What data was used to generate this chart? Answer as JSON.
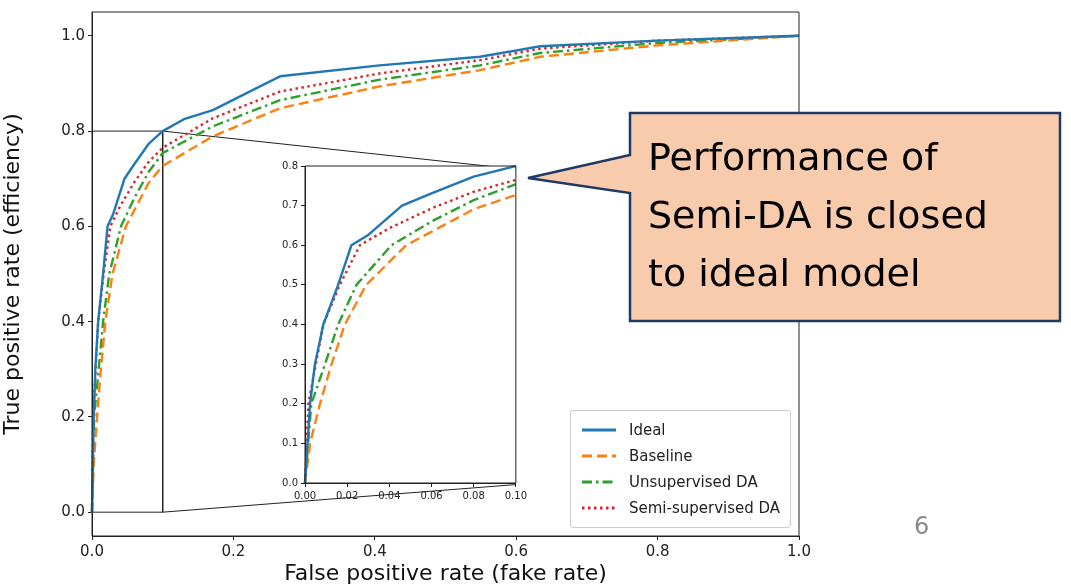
{
  "chart_data": [
    {
      "type": "line",
      "xlabel": "False positive rate (fake rate)",
      "ylabel": "True positive rate (efficiency)",
      "xlim": [
        0,
        1
      ],
      "ylim": [
        -0.05,
        1.05
      ],
      "xticks": [
        {
          "value": 0,
          "label": "0.0"
        },
        {
          "value": 0.2,
          "label": "0.2"
        },
        {
          "value": 0.4,
          "label": "0.4"
        },
        {
          "value": 0.6,
          "label": "0.6"
        },
        {
          "value": 0.8,
          "label": "0.8"
        },
        {
          "value": 1,
          "label": "1.0"
        }
      ],
      "yticks": [
        {
          "value": 0,
          "label": "0.0"
        },
        {
          "value": 0.2,
          "label": "0.2"
        },
        {
          "value": 0.4,
          "label": "0.4"
        },
        {
          "value": 0.6,
          "label": "0.6"
        },
        {
          "value": 0.8,
          "label": "0.8"
        },
        {
          "value": 1,
          "label": "1.0"
        }
      ],
      "legend": "bottom right",
      "marker": "none",
      "annotations": [
        "Performance of Semi-DA is closed to ideal model",
        "6"
      ],
      "series": [
        {
          "name": "Ideal",
          "color": "#1f77b4",
          "line_style": "solid",
          "x": [
            0,
            0.0024,
            0.0047,
            0.0087,
            0.0157,
            0.022,
            0.03,
            0.046,
            0.06,
            0.08,
            0.1,
            0.13,
            0.171,
            0.266,
            0.407,
            0.549,
            0.634,
            0.8,
            1
          ],
          "values": [
            0,
            0.2,
            0.3,
            0.4,
            0.5,
            0.6,
            0.626,
            0.7,
            0.731,
            0.773,
            0.8,
            0.825,
            0.844,
            0.915,
            0.938,
            0.956,
            0.978,
            0.99,
            1
          ]
        },
        {
          "name": "Baseline",
          "color": "#ff7f0e",
          "line_style": "dashed",
          "x": [
            0,
            0.0024,
            0.0071,
            0.0126,
            0.0189,
            0.029,
            0.048,
            0.08,
            0.1,
            0.171,
            0.266,
            0.407,
            0.549,
            0.634,
            0.8,
            1
          ],
          "values": [
            0,
            0.1,
            0.2,
            0.3,
            0.4,
            0.5,
            0.6,
            0.691,
            0.727,
            0.789,
            0.848,
            0.894,
            0.928,
            0.956,
            0.98,
            1
          ]
        },
        {
          "name": "Unsupervised DA",
          "color": "#2ca02c",
          "line_style": "dashdot",
          "x": [
            0,
            0.003,
            0.0095,
            0.0157,
            0.0244,
            0.041,
            0.06,
            0.08,
            0.1,
            0.171,
            0.266,
            0.407,
            0.549,
            0.634,
            0.8,
            1
          ],
          "values": [
            0,
            0.2,
            0.3,
            0.4,
            0.5,
            0.6,
            0.66,
            0.714,
            0.754,
            0.81,
            0.865,
            0.908,
            0.938,
            0.964,
            0.985,
            1
          ]
        },
        {
          "name": "Semi-supervised DA",
          "color": "#d62728",
          "line_style": "dotted",
          "x": [
            0,
            0.0016,
            0.0087,
            0.0165,
            0.026,
            0.04,
            0.06,
            0.08,
            0.1,
            0.171,
            0.266,
            0.407,
            0.549,
            0.634,
            0.8,
            1
          ],
          "values": [
            0,
            0.2,
            0.4,
            0.5,
            0.6,
            0.643,
            0.693,
            0.735,
            0.765,
            0.827,
            0.883,
            0.921,
            0.949,
            0.973,
            0.99,
            1
          ]
        },
        {
          "color": "#222222",
          "x": [
            0,
            0.1,
            0.1,
            0
          ],
          "values": [
            0.8,
            0.8,
            0,
            0
          ]
        },
        {
          "color": "#222222",
          "x": [
            0.1,
            0.6
          ],
          "values": [
            0.8,
            0.72
          ]
        },
        {
          "color": "#222222",
          "x": [
            0.1,
            0.6
          ],
          "values": [
            0,
            0.058
          ]
        }
      ]
    },
    {
      "type": "line",
      "xlim": [
        0,
        0.1
      ],
      "ylim": [
        0,
        0.8
      ],
      "xticks": [
        {
          "value": 0,
          "label": "0.00"
        },
        {
          "value": 0.02,
          "label": "0.02"
        },
        {
          "value": 0.04,
          "label": "0.04"
        },
        {
          "value": 0.06,
          "label": "0.06"
        },
        {
          "value": 0.08,
          "label": "0.08"
        },
        {
          "value": 0.1,
          "label": "0.10"
        }
      ],
      "yticks": [
        {
          "value": 0,
          "label": "0.0"
        },
        {
          "value": 0.1,
          "label": "0.1"
        },
        {
          "value": 0.2,
          "label": "0.2"
        },
        {
          "value": 0.3,
          "label": "0.3"
        },
        {
          "value": 0.4,
          "label": "0.4"
        },
        {
          "value": 0.5,
          "label": "0.5"
        },
        {
          "value": 0.6,
          "label": "0.6"
        },
        {
          "value": 0.7,
          "label": "0.7"
        },
        {
          "value": 0.8,
          "label": "0.8"
        }
      ],
      "marker": "none",
      "series": [
        {
          "color": "#1f77b4",
          "line_style": "solid",
          "x": [
            0,
            0.0024,
            0.0047,
            0.0087,
            0.0157,
            0.022,
            0.03,
            0.046,
            0.06,
            0.08,
            0.1
          ],
          "values": [
            0,
            0.2,
            0.3,
            0.4,
            0.5,
            0.6,
            0.626,
            0.7,
            0.731,
            0.773,
            0.8
          ]
        },
        {
          "color": "#ff7f0e",
          "line_style": "dashed",
          "x": [
            0,
            0.0024,
            0.0071,
            0.0126,
            0.0189,
            0.029,
            0.048,
            0.08,
            0.1
          ],
          "values": [
            0,
            0.1,
            0.2,
            0.3,
            0.4,
            0.5,
            0.6,
            0.691,
            0.727
          ]
        },
        {
          "color": "#2ca02c",
          "line_style": "dashdot",
          "x": [
            0,
            0.003,
            0.0095,
            0.0157,
            0.0244,
            0.041,
            0.06,
            0.08,
            0.1
          ],
          "values": [
            0,
            0.2,
            0.3,
            0.4,
            0.5,
            0.6,
            0.66,
            0.714,
            0.754
          ]
        },
        {
          "color": "#d62728",
          "line_style": "dotted",
          "x": [
            0,
            0.0016,
            0.0087,
            0.0165,
            0.026,
            0.04,
            0.06,
            0.08,
            0.1
          ],
          "values": [
            0,
            0.2,
            0.4,
            0.5,
            0.6,
            0.643,
            0.693,
            0.735,
            0.765
          ]
        }
      ]
    }
  ]
}
